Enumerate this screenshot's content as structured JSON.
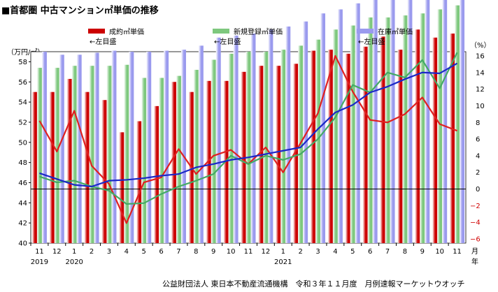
{
  "chart_data": {
    "type": "bar+line",
    "title": "■首都圏 中古マンション㎡単価の推移",
    "source": "公益財団法人 東日本不動産流通機構　令和３年１１月度　月例速報マーケットウオッチ",
    "left_axis": {
      "unit_label": "（万円/㎡）",
      "min": 40,
      "max": 59,
      "ticks": [
        40,
        42,
        44,
        46,
        48,
        50,
        52,
        54,
        56,
        58
      ]
    },
    "right_axis": {
      "unit_label": "（%）",
      "min": -6.5,
      "max": 16.5,
      "ticks": [
        16,
        14,
        12,
        10,
        8,
        6,
        4,
        2,
        0,
        -2,
        -4,
        -6
      ],
      "tick_labels": [
        "16",
        "14",
        "12",
        "10",
        "8",
        "6",
        "4",
        "2",
        "0",
        "−2",
        "−4",
        "−6"
      ]
    },
    "months": [
      "11",
      "12",
      "1",
      "2",
      "3",
      "4",
      "5",
      "6",
      "7",
      "8",
      "9",
      "10",
      "11",
      "12",
      "1",
      "2",
      "3",
      "4",
      "5",
      "6",
      "7",
      "8",
      "9",
      "10",
      "11"
    ],
    "year_labels": [
      {
        "index": 0,
        "text": "2019"
      },
      {
        "index": 2,
        "text": "2020"
      },
      {
        "index": 14,
        "text": "2021"
      }
    ],
    "month_suffix": "月",
    "year_suffix": "年",
    "legend": [
      {
        "name": "成約㎡単価",
        "sub": "←左目盛",
        "color": "#cc0000",
        "kind": "bar"
      },
      {
        "name": "新規登録㎡単価",
        "sub": "←左目盛",
        "color": "#7ec87e",
        "kind": "bar"
      },
      {
        "name": "在庫㎡単価",
        "sub": "←左目盛",
        "color": "#9a9aee",
        "kind": "bar"
      }
    ],
    "bar_series": [
      {
        "name": "成約㎡単価",
        "color": "#cc0000",
        "values": [
          55.0,
          55.0,
          56.3,
          55.0,
          54.2,
          51.0,
          52.1,
          53.6,
          56.0,
          55.0,
          56.1,
          56.1,
          57.0,
          57.6,
          57.6,
          57.8,
          59.1,
          59.2,
          58.8,
          59.5,
          60.5,
          59.2,
          61.2,
          60.4,
          60.8
        ]
      },
      {
        "name": "新規登録㎡単価",
        "color": "#7ec87e",
        "values": [
          57.4,
          57.4,
          57.6,
          57.6,
          57.6,
          57.7,
          56.4,
          56.4,
          56.6,
          57.2,
          58.2,
          58.8,
          59.0,
          59.0,
          59.2,
          59.6,
          60.2,
          61.2,
          61.6,
          62.4,
          62.4,
          62.6,
          62.8,
          63.2,
          63.6
        ]
      },
      {
        "name": "在庫㎡単価",
        "color": "#9a9aee",
        "values": [
          59.0,
          58.7,
          58.7,
          58.9,
          59.1,
          59.0,
          59.0,
          59.1,
          59.2,
          59.6,
          60.4,
          60.6,
          60.8,
          61.2,
          61.5,
          62.0,
          62.8,
          63.2,
          63.8,
          64.4,
          64.8,
          65.0,
          65.2,
          65.8,
          66.2
        ]
      }
    ],
    "line_series": [
      {
        "name": "成約㎡単価",
        "color": "#e02020",
        "values": [
          8.2,
          4.5,
          9.4,
          2.8,
          0.6,
          -4.1,
          0.8,
          1.4,
          4.8,
          1.8,
          4.0,
          4.7,
          3.0,
          5.0,
          2.0,
          5.5,
          9.1,
          16.0,
          11.7,
          8.3,
          8.0,
          9.0,
          11.0,
          7.8,
          7.0
        ]
      },
      {
        "name": "新規登録㎡単価",
        "color": "#44aa66",
        "values": [
          1.5,
          0.8,
          1.0,
          0.3,
          -0.2,
          -1.8,
          -1.7,
          -0.6,
          0.3,
          1.0,
          1.8,
          4.0,
          3.0,
          4.0,
          3.5,
          4.2,
          6.0,
          8.6,
          12.5,
          11.6,
          14.0,
          13.4,
          15.5,
          12.1,
          16.4
        ]
      },
      {
        "name": "在庫㎡単価",
        "color": "#1a28c8",
        "values": [
          1.9,
          1.2,
          0.5,
          0.3,
          1.0,
          1.1,
          1.3,
          1.6,
          1.8,
          2.6,
          3.0,
          3.5,
          3.8,
          4.2,
          4.6,
          5.0,
          7.2,
          9.2,
          10.1,
          11.6,
          12.3,
          13.2,
          14.0,
          13.9,
          15.1
        ]
      }
    ]
  }
}
